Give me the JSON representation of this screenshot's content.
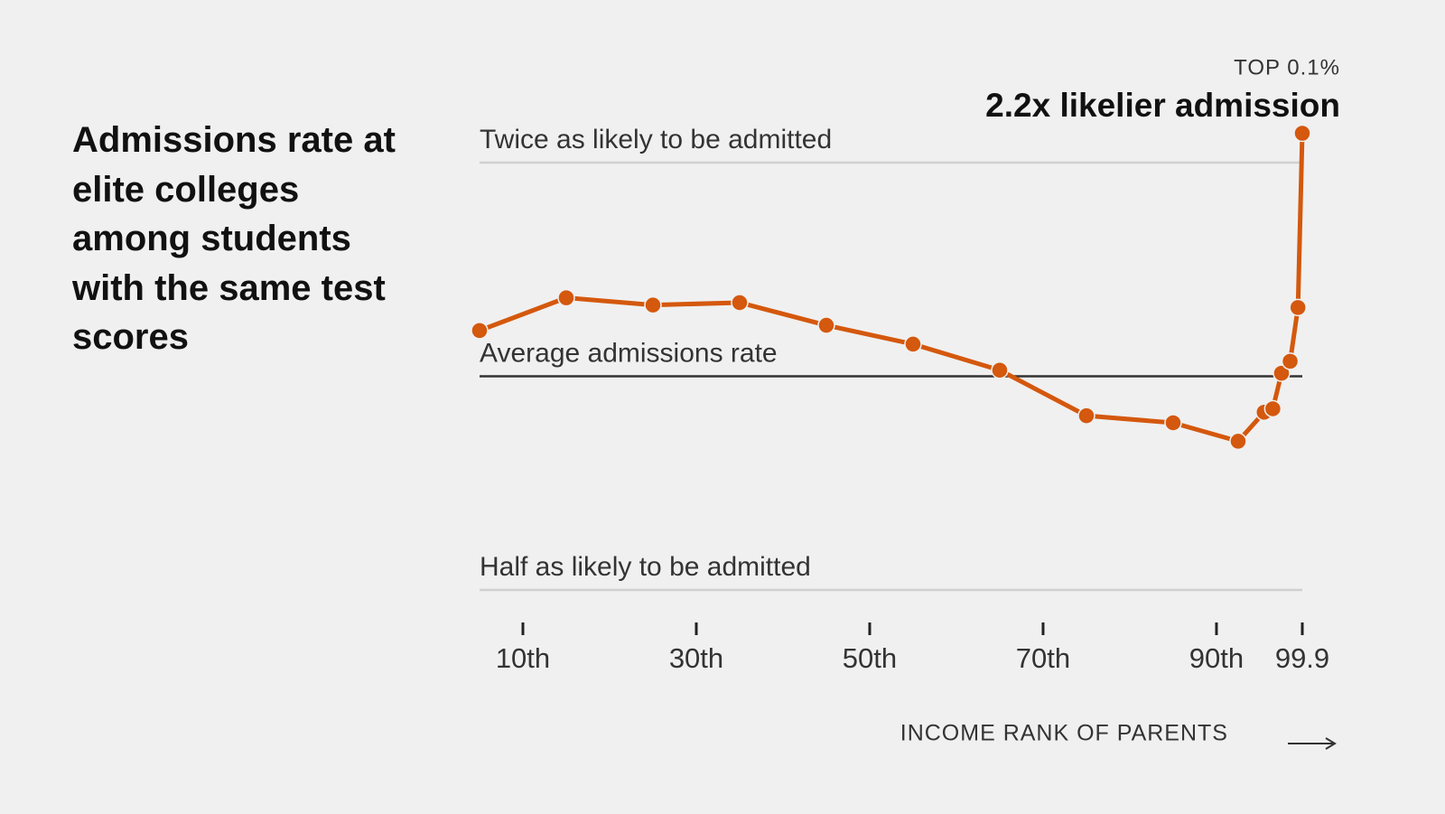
{
  "chart_data": {
    "type": "line",
    "title": "Admissions rate at elite colleges among students with the same test scores",
    "x_label": "INCOME RANK OF PARENTS",
    "annotation_top": "TOP 0.1%",
    "annotation_main": "2.2x likelier admission",
    "x": [
      5,
      15,
      25,
      35,
      45,
      55,
      65,
      75,
      85,
      92.5,
      95.5,
      96.5,
      97.5,
      98.5,
      99.4,
      99.9
    ],
    "series": [
      {
        "color": "#d4580d",
        "values": [
          1.16,
          1.29,
          1.26,
          1.27,
          1.18,
          1.11,
          1.02,
          0.88,
          0.86,
          0.81,
          0.89,
          0.9,
          1.01,
          1.05,
          1.25,
          2.2
        ]
      }
    ],
    "xlim": [
      5,
      99.9
    ],
    "xticks": [
      {
        "value": 10,
        "label": "10th"
      },
      {
        "value": 30,
        "label": "30th"
      },
      {
        "value": 50,
        "label": "50th"
      },
      {
        "value": 70,
        "label": "70th"
      },
      {
        "value": 90,
        "label": "90th"
      },
      99.9
    ],
    "ylim": [
      0.5,
      2.2
    ],
    "yticks": [
      {
        "value": 0.5,
        "label": "Half as likely to be admitted"
      },
      {
        "value": 1,
        "label": "Average admissions rate"
      },
      {
        "value": 2,
        "label": "Twice as likely to be admitted"
      }
    ],
    "log_y": true,
    "baseline": 1,
    "grid": true
  }
}
